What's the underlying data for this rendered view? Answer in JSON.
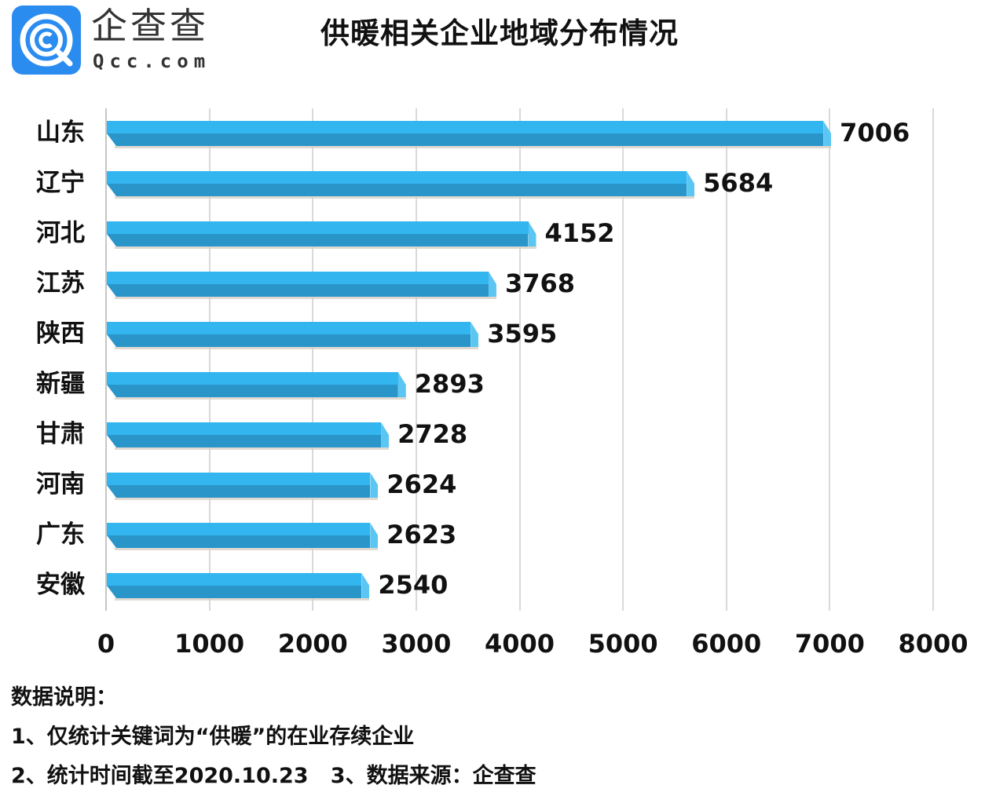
{
  "brand": {
    "logo_icon": "qcc-logo-icon",
    "name_cn": "企查查",
    "name_en": "Qcc.com",
    "color": "#2b8cf0"
  },
  "title": "供暖相关企业地域分布情况",
  "chart_data": {
    "type": "bar",
    "orientation": "horizontal",
    "title": "供暖相关企业地域分布情况",
    "categories": [
      "山东",
      "辽宁",
      "河北",
      "江苏",
      "陕西",
      "新疆",
      "甘肃",
      "河南",
      "广东",
      "安徽"
    ],
    "values": [
      7006,
      5684,
      4152,
      3768,
      3595,
      2893,
      2728,
      2624,
      2623,
      2540
    ],
    "value_labels": [
      "7006",
      "5684",
      "4152",
      "3768",
      "3595",
      "2893",
      "2728",
      "2624",
      "2623",
      "2540"
    ],
    "xlabel": "",
    "ylabel": "",
    "xlim": [
      0,
      8000
    ],
    "xticks": [
      "0",
      "1000",
      "2000",
      "3000",
      "4000",
      "5000",
      "6000",
      "7000",
      "8000"
    ],
    "grid": true,
    "legend": null,
    "bar_color": "#33b6f0",
    "bar_shade_color": "#2a95c9"
  },
  "notes": {
    "heading": "数据说明：",
    "line1": "1、仅统计关键词为“供暖”的在业存续企业",
    "line2": "2、统计时间截至2020.10.23   3、数据来源：企查查"
  }
}
